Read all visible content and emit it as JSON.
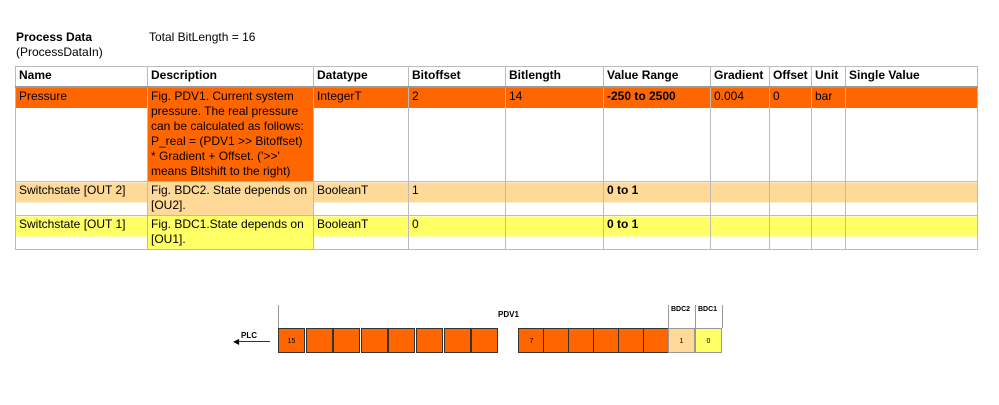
{
  "header": {
    "title": "Process Data",
    "subtitle": "(ProcessDataIn)",
    "total": "Total BitLength = 16"
  },
  "table": {
    "columns": [
      "Name",
      "Description",
      "Datatype",
      "Bitoffset",
      "Bitlength",
      "Value Range",
      "Gradient",
      "Offset",
      "Unit",
      "Single Value"
    ],
    "rows": [
      {
        "name": "Pressure",
        "description": "Fig. PDV1. Current system pressure. The real pressure can be calculated as follows: P_real = (PDV1 >> Bitoffset) * Gradient + Offset. ('>>' means Bitshift to the right)",
        "datatype": "IntegerT",
        "bitoffset": "2",
        "bitlength": "14",
        "range": "-250 to 2500",
        "gradient": "0.004",
        "offset": "0",
        "unit": "bar",
        "single": "",
        "color": "#ff6600"
      },
      {
        "name": "Switchstate [OUT 2]",
        "description": "Fig. BDC2. State depends on [OU2].",
        "datatype": "BooleanT",
        "bitoffset": "1",
        "bitlength": "",
        "range": "0 to 1",
        "gradient": "",
        "offset": "",
        "unit": "",
        "single": "",
        "color": "#ffd998"
      },
      {
        "name": "Switchstate [OUT 1]",
        "description": "Fig. BDC1.State depends on [OU1].",
        "datatype": "BooleanT",
        "bitoffset": "0",
        "bitlength": "",
        "range": "0 to 1",
        "gradient": "",
        "offset": "",
        "unit": "",
        "single": "",
        "color": "#ffff66"
      }
    ]
  },
  "diagram": {
    "plc": "PLC",
    "pdv1": "PDV1",
    "bdc2": "BDC2",
    "bdc1": "BDC1",
    "bit15": "15",
    "bit7": "7",
    "bit1": "1",
    "bit0": "0",
    "colors": {
      "pdv1": "#ff6600",
      "bdc2": "#ffd998",
      "bdc1": "#ffff66"
    }
  }
}
